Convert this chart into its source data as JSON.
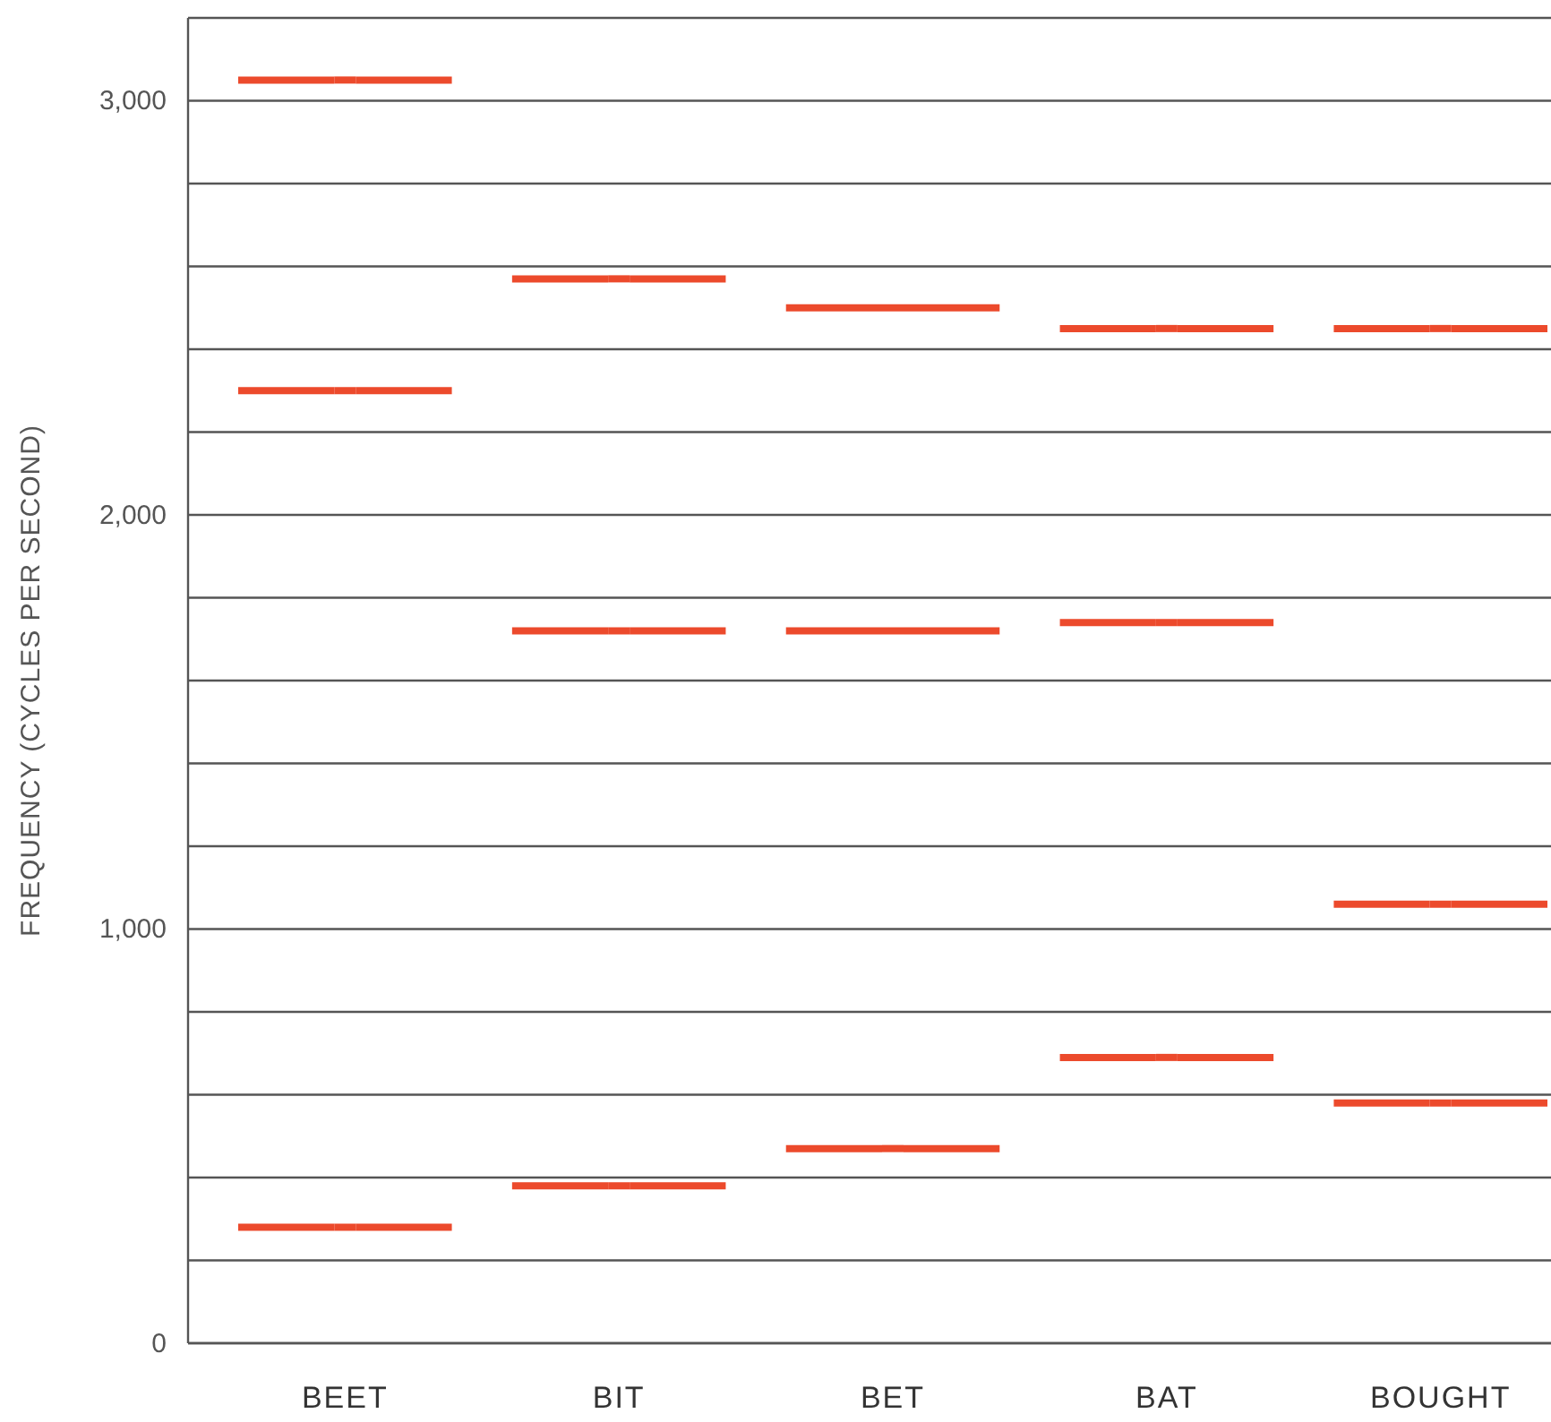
{
  "chart_data": {
    "type": "scatter",
    "ylabel": "FREQUENCY (CYCLES PER SECOND)",
    "categories": [
      "BEET",
      "BIT",
      "BET",
      "BAT",
      "BOUGHT"
    ],
    "series": [
      {
        "color": "#ec4a2c",
        "values": [
          3050,
          2570,
          2500,
          2450,
          2450
        ]
      },
      {
        "color": "#ec4a2c",
        "values": [
          2300,
          1720,
          1720,
          1740,
          1060
        ]
      },
      {
        "color": "#ec4a2c",
        "values": [
          280,
          380,
          470,
          690,
          580
        ]
      }
    ],
    "ylim": [
      0,
      3200
    ],
    "yticks": [
      0,
      {
        "value": 200,
        "label": null
      },
      {
        "value": 400,
        "label": null
      },
      {
        "value": 600,
        "label": null
      },
      {
        "value": 800,
        "label": null
      },
      {
        "value": 1000,
        "label": "1,000"
      },
      {
        "value": 1200,
        "label": null
      },
      {
        "value": 1400,
        "label": null
      },
      {
        "value": 1600,
        "label": null
      },
      {
        "value": 1800,
        "label": null
      },
      {
        "value": 2000,
        "label": "2,000"
      },
      {
        "value": 2200,
        "label": null
      },
      {
        "value": 2400,
        "label": null
      },
      {
        "value": 2600,
        "label": null
      },
      {
        "value": 2800,
        "label": null
      },
      {
        "value": 3000,
        "label": "3,000"
      },
      {
        "value": 3200,
        "label": null
      }
    ],
    "grid": "y"
  }
}
